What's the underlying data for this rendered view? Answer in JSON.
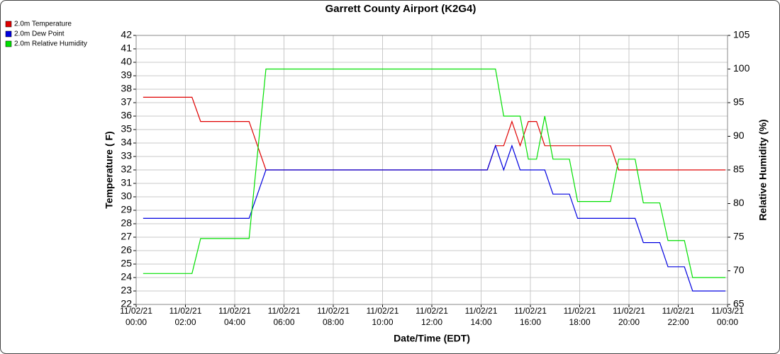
{
  "chart_data": {
    "type": "line",
    "title": "Garrett County Airport (K2G4)",
    "x_label": "Date/Time (EDT)",
    "y_label": "Temperature ( F)",
    "y2_label": "Relative Humidity (%)",
    "x": [
      "11/02/21 00:17",
      "11/02/21 02:16",
      "11/02/21 02:37",
      "11/02/21 04:35",
      "11/02/21 05:16",
      "11/02/21 14:15",
      "11/02/21 14:35",
      "11/02/21 14:55",
      "11/02/21 15:15",
      "11/02/21 15:35",
      "11/02/21 15:55",
      "11/02/21 16:15",
      "11/02/21 16:35",
      "11/02/21 16:55",
      "11/02/21 17:35",
      "11/02/21 17:55",
      "11/02/21 19:15",
      "11/02/21 19:35",
      "11/02/21 20:15",
      "11/02/21 20:35",
      "11/02/21 21:15",
      "11/02/21 21:35",
      "11/02/21 22:15",
      "11/02/21 22:35",
      "11/02/21 23:55"
    ],
    "series": [
      {
        "name": "2.0m Temperature",
        "color": "#e00000",
        "values": [
          37.4,
          37.4,
          35.6,
          35.6,
          32,
          32,
          33.8,
          33.8,
          35.6,
          33.8,
          35.6,
          35.6,
          33.8,
          33.8,
          33.8,
          33.8,
          33.8,
          32,
          32,
          32,
          32,
          32,
          32,
          32,
          32
        ]
      },
      {
        "name": "2.0m Dew Point",
        "color": "#0000e0",
        "values": [
          28.4,
          28.4,
          28.4,
          28.4,
          32,
          32,
          33.8,
          32,
          33.8,
          32,
          32,
          32,
          32,
          30.2,
          30.2,
          28.4,
          28.4,
          28.4,
          28.4,
          26.6,
          26.6,
          24.8,
          24.8,
          23,
          23
        ]
      },
      {
        "name": "2.0m Relative Humidity",
        "color": "#00e000",
        "axis": "y2",
        "values": [
          69.6,
          69.6,
          74.8,
          74.8,
          100,
          100,
          100,
          93,
          93,
          93,
          86.6,
          86.6,
          93,
          86.6,
          86.6,
          80.3,
          80.3,
          86.6,
          86.6,
          80.1,
          80.1,
          74.5,
          74.5,
          69,
          69
        ]
      }
    ],
    "xlim": [
      "11/02/21 00:00",
      "11/03/21 00:00"
    ],
    "xticks": [
      "11/02/21 00:00",
      "11/02/21 02:00",
      "11/02/21 04:00",
      "11/02/21 06:00",
      "11/02/21 08:00",
      "11/02/21 10:00",
      "11/02/21 12:00",
      "11/02/21 14:00",
      "11/02/21 16:00",
      "11/02/21 18:00",
      "11/02/21 20:00",
      "11/02/21 22:00",
      "11/03/21 00:00"
    ],
    "ylim": [
      22,
      42
    ],
    "yticks": [
      22,
      23,
      24,
      25,
      26,
      27,
      28,
      29,
      30,
      31,
      32,
      33,
      34,
      35,
      36,
      37,
      38,
      39,
      40,
      41,
      42
    ],
    "y2lim": [
      65,
      105
    ],
    "y2ticks": [
      65,
      70,
      75,
      80,
      85,
      90,
      95,
      100,
      105
    ],
    "grid": true,
    "legend": "top-left"
  }
}
